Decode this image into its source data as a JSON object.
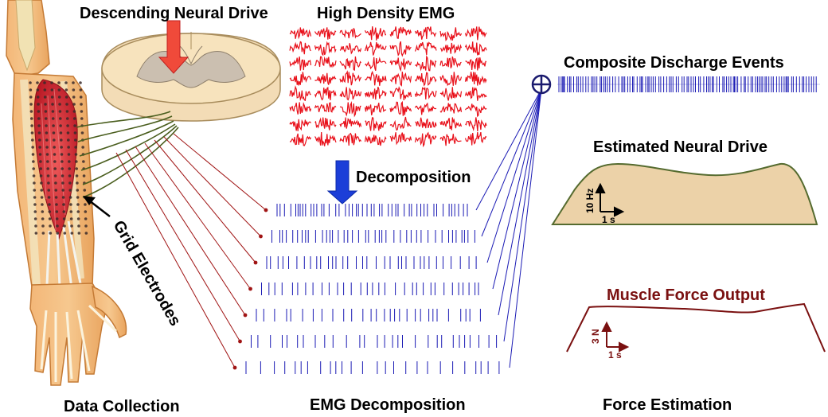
{
  "labels": {
    "descending_neural_drive": "Descending Neural Drive",
    "high_density_emg": "High Density EMG",
    "composite_discharge_events": "Composite Discharge Events",
    "estimated_neural_drive": "Estimated Neural Drive",
    "decomposition": "Decomposition",
    "grid_electrodes": "Grid Electrodes",
    "muscle_force_output": "Muscle Force Output",
    "data_collection": "Data Collection",
    "emg_decomposition": "EMG Decomposition",
    "force_estimation": "Force Estimation"
  },
  "scale_bars": {
    "drive_vertical": "10 Hz",
    "drive_horizontal": "1 s",
    "force_vertical": "3 N",
    "force_horizontal": "1 s"
  },
  "colors": {
    "emg_trace": "#e8101a",
    "spike": "#1a1ab4",
    "connector_blue": "#1a1ab4",
    "connector_red": "#a01414",
    "force_curve": "#7a1010",
    "drive_fill": "#ecd2a8",
    "drive_stroke": "#556b2f",
    "arrow_red": "#f04a3a",
    "arrow_blue": "#1c3ed8",
    "cord": "#f7e3bd",
    "muscle_red": "#d8303a"
  },
  "icons": {
    "summation": "circle-plus-icon",
    "down_arrow_red": "arrow-down-icon",
    "down_arrow_blue": "arrow-down-icon",
    "pointer_arrow": "arrow-up-left-icon"
  },
  "emg_grid": {
    "rows": 8,
    "cols": 8
  },
  "spike_trains": {
    "count": 7
  }
}
